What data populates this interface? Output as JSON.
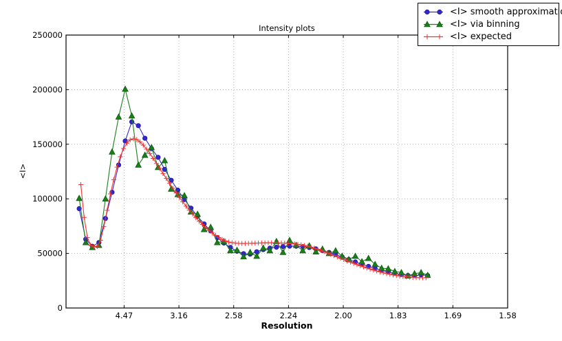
{
  "title": "Intensity plots",
  "axes": {
    "xlabel": "Resolution",
    "ylabel": "<I>",
    "x_tick_labels": [
      "4.47",
      "3.16",
      "2.58",
      "2.24",
      "2.00",
      "1.83",
      "1.69",
      "1.58"
    ],
    "x_tick_positions_inv_d2": [
      0.05,
      0.1,
      0.15,
      0.2,
      0.25,
      0.3,
      0.35,
      0.4
    ],
    "y_tick_labels": [
      "0",
      "50000",
      "100000",
      "150000",
      "200000",
      "250000"
    ],
    "y_ticks": [
      0,
      50000,
      100000,
      150000,
      200000,
      250000
    ],
    "xlim_inv_d2": [
      -0.003,
      0.4
    ],
    "ylim": [
      0,
      250000
    ],
    "grid": "dotted",
    "grid_color": "#aaaaaa"
  },
  "chart_data": {
    "type": "line",
    "title": "Intensity plots",
    "xlabel": "Resolution",
    "ylabel": "<I>",
    "x_axis_note": "x is resolution d (angstrom), spaced linearly in 1/d^2; x values below are 1/d^2",
    "xlim": [
      -0.003,
      0.4
    ],
    "ylim": [
      0,
      250000
    ],
    "legend_position": "upper right",
    "series": [
      {
        "name": "<I> smooth approximation",
        "marker": "circle",
        "color": "#3327cf",
        "edge_color": "#1c12a0",
        "x_start": 0.009,
        "x_step": 0.006,
        "y": [
          91000,
          63000,
          56500,
          60000,
          82000,
          106000,
          131000,
          153000,
          170500,
          167000,
          155500,
          146000,
          138000,
          127000,
          117000,
          108000,
          99500,
          91500,
          84000,
          77000,
          70500,
          64500,
          59500,
          55500,
          52000,
          49800,
          49300,
          51500,
          53500,
          54800,
          55700,
          56300,
          56600,
          56600,
          56200,
          55400,
          54200,
          52700,
          50900,
          48900,
          46700,
          44400,
          42200,
          40100,
          38100,
          36200,
          34500,
          33000,
          31700,
          30600,
          29800,
          29600,
          30400,
          29700
        ]
      },
      {
        "name": "<I> via binning",
        "marker": "triangle",
        "color": "#1a7f1a",
        "edge_color": "#0d5c0d",
        "x_start": 0.009,
        "x_step": 0.006,
        "y": [
          100500,
          60000,
          55500,
          57500,
          100000,
          143000,
          175000,
          200500,
          176000,
          131000,
          140000,
          147000,
          128800,
          135000,
          109000,
          104000,
          103000,
          88000,
          86000,
          72000,
          74000,
          60000,
          61000,
          52500,
          53000,
          47000,
          51000,
          47500,
          55000,
          52500,
          61000,
          51000,
          62000,
          57500,
          52500,
          57000,
          51500,
          54000,
          50000,
          52500,
          47500,
          44500,
          47500,
          42500,
          45500,
          40000,
          36500,
          36000,
          33500,
          32500,
          29500,
          31500,
          32500,
          30000
        ]
      },
      {
        "name": "<I> expected",
        "marker": "plus",
        "color": "#f13232",
        "edge_color": "#f13232",
        "x_start": 0.0105,
        "x_step": 0.003,
        "y": [
          113000,
          83000,
          64500,
          57500,
          56000,
          56500,
          62000,
          74500,
          89500,
          104500,
          117500,
          129000,
          138500,
          146000,
          151000,
          154000,
          155000,
          154300,
          152200,
          149200,
          145500,
          141400,
          137000,
          132400,
          127800,
          123200,
          118600,
          114100,
          109700,
          105400,
          101200,
          97200,
          93300,
          89600,
          86100,
          82700,
          79500,
          76500,
          73700,
          71100,
          68700,
          66500,
          64500,
          62800,
          61400,
          60400,
          59800,
          59400,
          59200,
          59100,
          59100,
          59200,
          59300,
          59400,
          59500,
          59600,
          59700,
          59700,
          59700,
          59700,
          59600,
          59500,
          59400,
          59200,
          59000,
          58700,
          58300,
          57800,
          57200,
          56500,
          55700,
          54800,
          53800,
          52700,
          51600,
          50400,
          49200,
          48000,
          46800,
          45600,
          44400,
          43200,
          42000,
          40900,
          39800,
          38700,
          37700,
          36700,
          35700,
          34800,
          33900,
          33100,
          32300,
          31600,
          30900,
          30300,
          29800,
          29300,
          28900,
          28600,
          28300,
          28100,
          27900,
          27800,
          27700,
          27700
        ]
      }
    ]
  }
}
